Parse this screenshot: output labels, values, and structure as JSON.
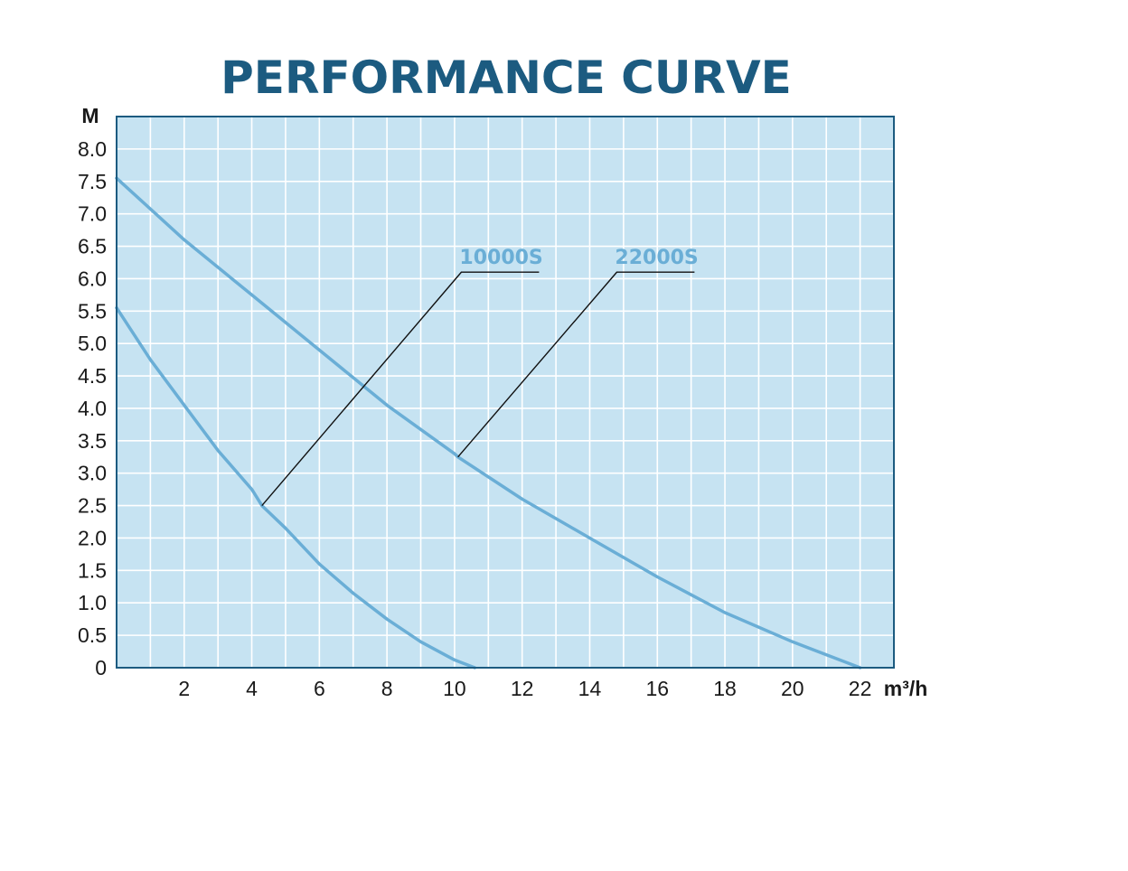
{
  "colors": {
    "title": "#1c5b80",
    "plot_background": "#c6e3f2",
    "grid": "#ffffff",
    "frame": "#1c5b80",
    "curve": "#6aaed6",
    "leader_line": "#111111"
  },
  "chart_data": {
    "type": "line",
    "title": "PERFORMANCE CURVE",
    "ylabel": "M",
    "xlabel": "m³/h",
    "xlim": [
      0,
      23
    ],
    "ylim": [
      0,
      8.5
    ],
    "grid": true,
    "x_ticks": [
      2,
      4,
      6,
      8,
      10,
      12,
      14,
      16,
      18,
      20,
      22
    ],
    "y_ticks": [
      0,
      0.5,
      1.0,
      1.5,
      2.0,
      2.5,
      3.0,
      3.5,
      4.0,
      4.5,
      5.0,
      5.5,
      6.0,
      6.5,
      7.0,
      7.5,
      8.0
    ],
    "y_tick_labels": [
      "0",
      "0.5",
      "1.0",
      "1.5",
      "2.0",
      "2.5",
      "3.0",
      "3.5",
      "4.0",
      "4.5",
      "5.0",
      "5.5",
      "6.0",
      "6.5",
      "7.0",
      "7.5",
      "8.0"
    ],
    "series": [
      {
        "name": "10000S",
        "x": [
          0,
          1,
          2,
          3,
          4,
          4.3,
          5,
          6,
          7,
          8,
          9,
          10,
          10.6
        ],
        "y": [
          5.55,
          4.75,
          4.05,
          3.35,
          2.75,
          2.5,
          2.15,
          1.6,
          1.15,
          0.75,
          0.4,
          0.12,
          0
        ]
      },
      {
        "name": "22000S",
        "x": [
          0,
          2,
          4,
          6,
          8,
          10,
          10.1,
          12,
          14,
          16,
          18,
          20,
          22
        ],
        "y": [
          7.55,
          6.6,
          5.75,
          4.9,
          4.05,
          3.3,
          3.25,
          2.6,
          2.0,
          1.4,
          0.85,
          0.4,
          0
        ]
      }
    ],
    "annotations": [
      {
        "series": "10000S",
        "text": "10000S",
        "point_x": 4.3,
        "point_y": 2.5,
        "label_x": 10.2,
        "label_y": 6.1,
        "label_end_x": 12.5
      },
      {
        "series": "22000S",
        "text": "22000S",
        "point_x": 10.1,
        "point_y": 3.25,
        "label_x": 14.8,
        "label_y": 6.1,
        "label_end_x": 17.1
      }
    ]
  }
}
